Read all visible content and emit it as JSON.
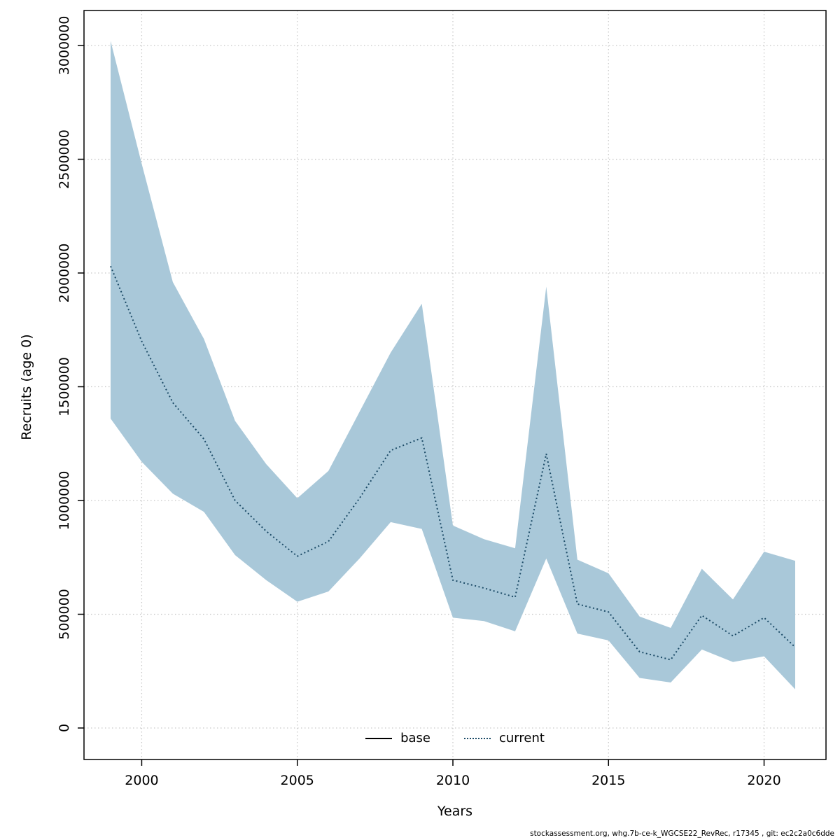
{
  "ylabel_text": "Recruits (age 0)",
  "xlabel_text": "Years",
  "legend": {
    "base_label": "base",
    "current_label": "current"
  },
  "footer": "stockassessment.org, whg.7b-ce-k_WGCSE22_RevRec, r17345 , git: ec2c2a0c6dde",
  "colors": {
    "band": "#a9c8d9",
    "line": "#1b4a66",
    "base_line": "#000000",
    "grid": "#c6c6c6",
    "axis": "#000000"
  },
  "chart_data": {
    "type": "line",
    "title": "",
    "xlabel": "Years",
    "ylabel": "Recruits (age 0)",
    "grid": true,
    "legend_position": "bottom-center",
    "xlim": [
      1999,
      2021
    ],
    "ylim": [
      0,
      3000000
    ],
    "xticks": [
      2000,
      2005,
      2010,
      2015,
      2020
    ],
    "xticklabels": [
      "2000",
      "2005",
      "2010",
      "2015",
      "2020"
    ],
    "yticks": [
      0,
      500000,
      1000000,
      1500000,
      2000000,
      2500000,
      3000000
    ],
    "yticklabels": [
      "0",
      "500000",
      "1000000",
      "1500000",
      "2000000",
      "2500000",
      "3000000"
    ],
    "x": [
      1999,
      2000,
      2001,
      2002,
      2003,
      2004,
      2005,
      2006,
      2007,
      2008,
      2009,
      2010,
      2011,
      2012,
      2013,
      2014,
      2015,
      2016,
      2017,
      2018,
      2019,
      2020,
      2021
    ],
    "series": [
      {
        "name": "current",
        "style": "dotted",
        "values": [
          2030000,
          1700000,
          1430000,
          1270000,
          1000000,
          865000,
          755000,
          820000,
          1010000,
          1220000,
          1275000,
          650000,
          615000,
          575000,
          1205000,
          545000,
          510000,
          335000,
          300000,
          495000,
          405000,
          485000,
          355000
        ]
      }
    ],
    "band": {
      "name": "current-confidence-interval",
      "lower": [
        1360000,
        1170000,
        1030000,
        950000,
        760000,
        650000,
        555000,
        600000,
        745000,
        905000,
        875000,
        485000,
        470000,
        425000,
        745000,
        415000,
        385000,
        220000,
        200000,
        345000,
        290000,
        315000,
        170000
      ],
      "upper": [
        3020000,
        2480000,
        1960000,
        1710000,
        1350000,
        1160000,
        1010000,
        1130000,
        1390000,
        1650000,
        1865000,
        890000,
        830000,
        790000,
        1940000,
        740000,
        680000,
        490000,
        440000,
        700000,
        565000,
        775000,
        735000
      ]
    }
  }
}
